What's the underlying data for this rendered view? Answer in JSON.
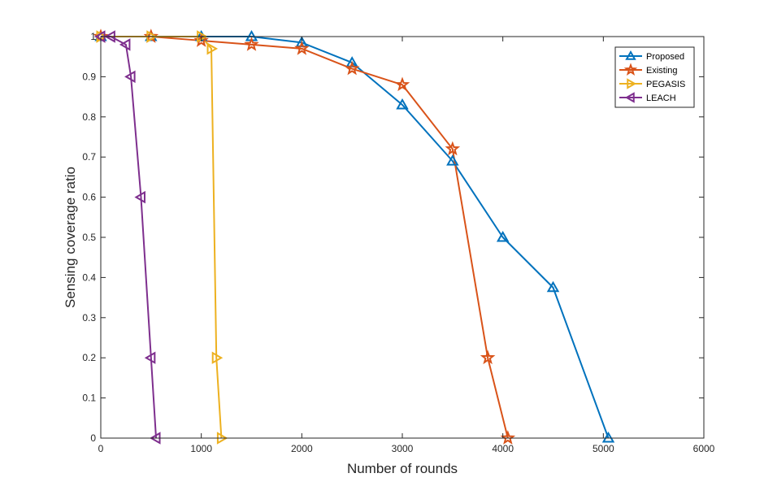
{
  "chart_data": {
    "type": "line",
    "title": "",
    "xlabel": "Number of rounds",
    "ylabel": "Sensing coverage ratio",
    "xlim": [
      0,
      6000
    ],
    "ylim": [
      0,
      1
    ],
    "xticks": [
      0,
      1000,
      2000,
      3000,
      4000,
      5000,
      6000
    ],
    "yticks": [
      0,
      0.1,
      0.2,
      0.3,
      0.4,
      0.5,
      0.6,
      0.7,
      0.8,
      0.9,
      1
    ],
    "grid": false,
    "legend_position": "top-right",
    "series": [
      {
        "name": "Proposed",
        "color": "#0072BD",
        "marker": "triangle-up",
        "x": [
          0,
          500,
          1000,
          1500,
          2000,
          2500,
          3000,
          3500,
          4000,
          4500,
          5050
        ],
        "y": [
          1,
          1,
          1,
          1,
          0.985,
          0.935,
          0.83,
          0.69,
          0.5,
          0.375,
          0
        ]
      },
      {
        "name": "Existing",
        "color": "#D95319",
        "marker": "star",
        "x": [
          0,
          500,
          1000,
          1500,
          2000,
          2500,
          3000,
          3500,
          3850,
          4050
        ],
        "y": [
          1,
          1,
          0.99,
          0.98,
          0.97,
          0.92,
          0.88,
          0.72,
          0.2,
          0
        ]
      },
      {
        "name": "PEGASIS",
        "color": "#EDB120",
        "marker": "triangle-right",
        "x": [
          0,
          500,
          1000,
          1100,
          1150,
          1200
        ],
        "y": [
          1,
          1,
          1,
          0.97,
          0.2,
          0
        ]
      },
      {
        "name": "LEACH",
        "color": "#7E2F8E",
        "marker": "triangle-left",
        "x": [
          0,
          100,
          250,
          300,
          400,
          500,
          550
        ],
        "y": [
          1,
          1,
          0.98,
          0.9,
          0.6,
          0.2,
          0
        ]
      }
    ]
  }
}
